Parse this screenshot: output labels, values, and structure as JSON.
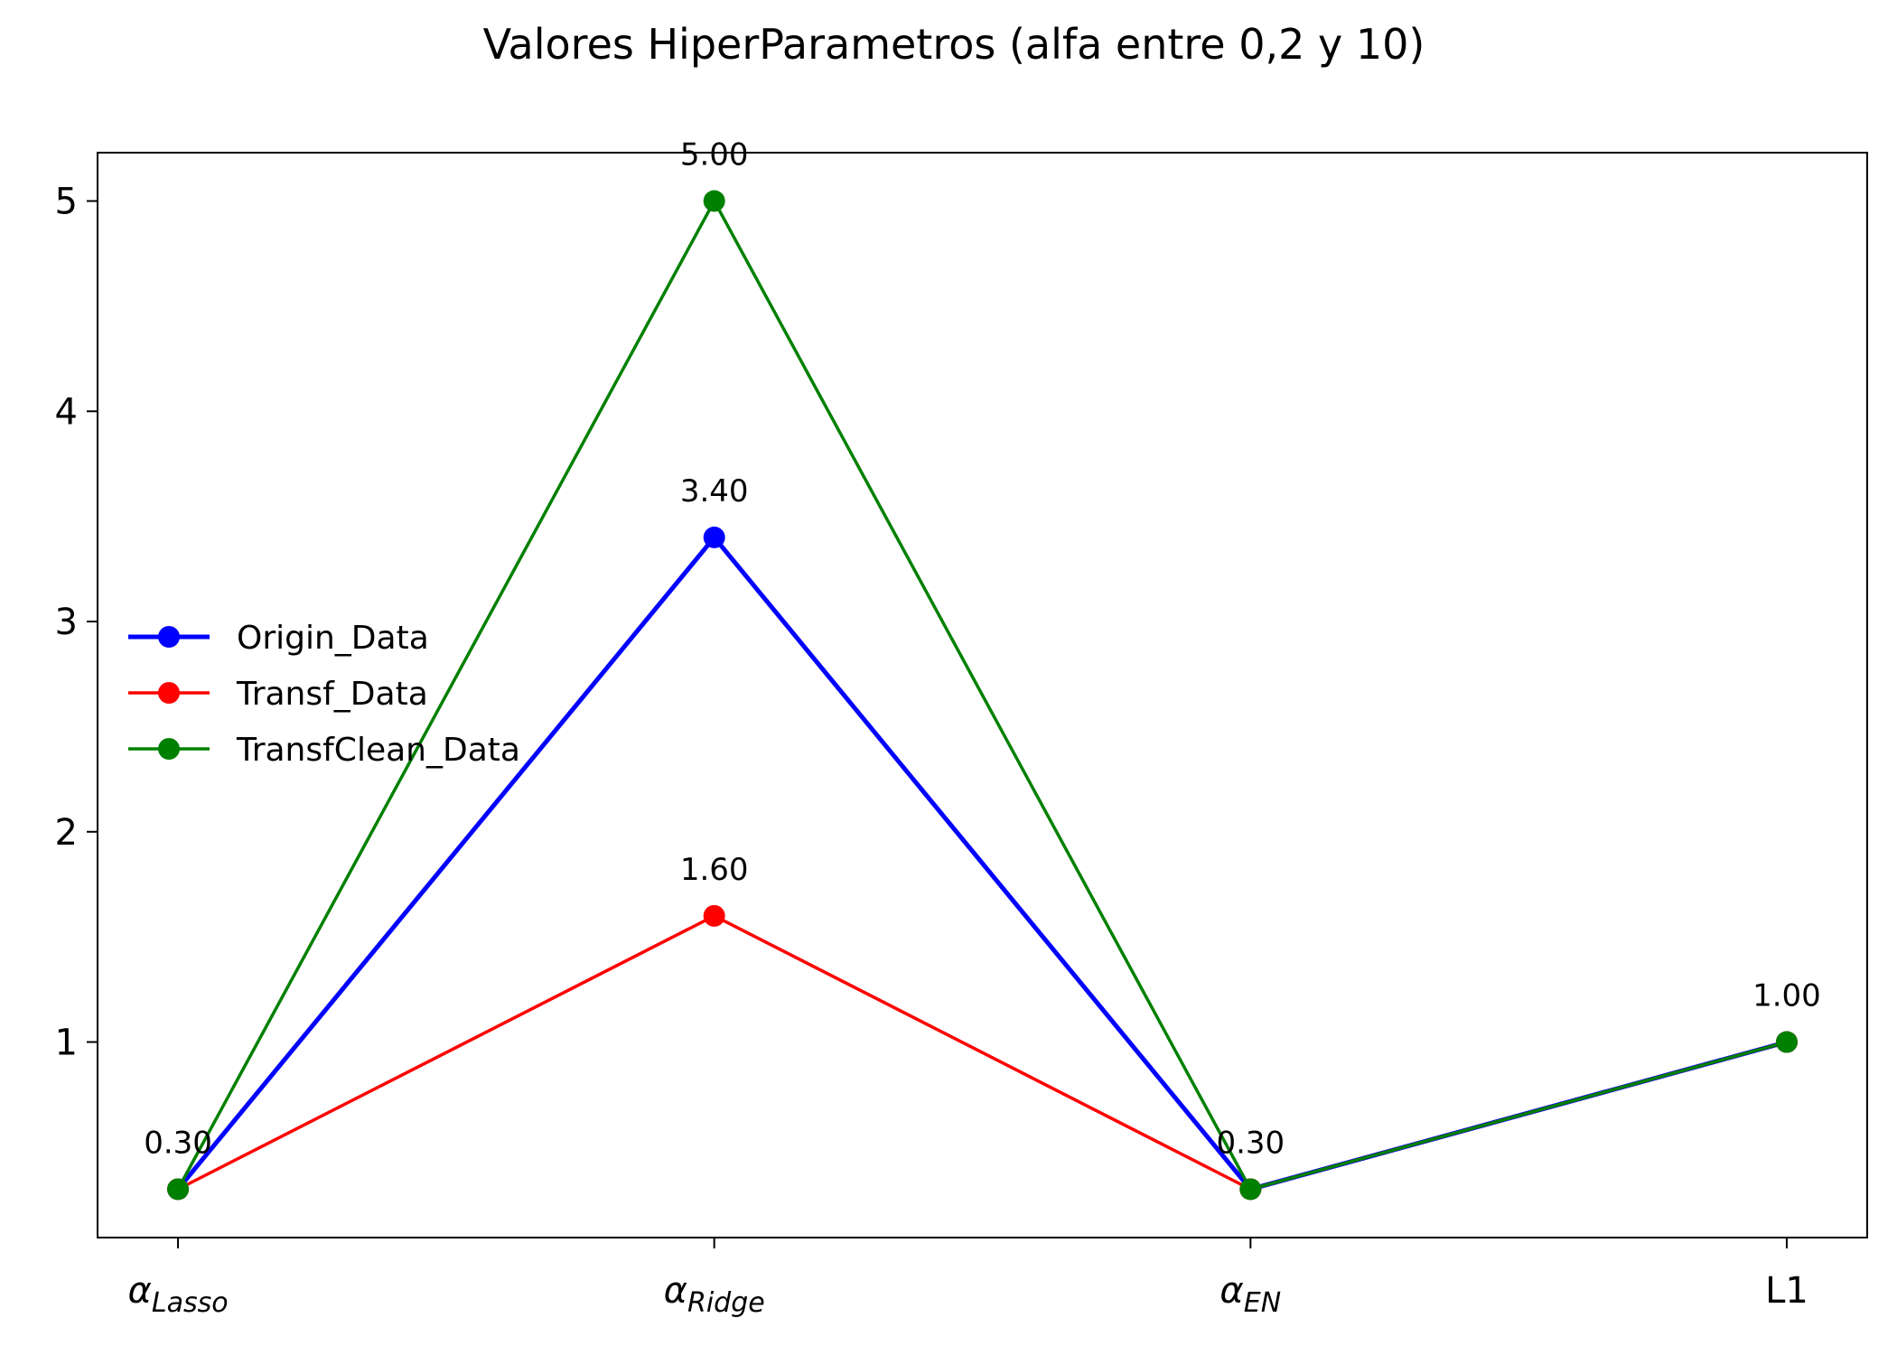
{
  "chart_data": {
    "type": "line",
    "title": "Valores HiperParametros (alfa entre 0,2 y 10)",
    "xlabel": "",
    "ylabel": "",
    "categories": [
      {
        "symbol": "α",
        "sub": "Lasso"
      },
      {
        "symbol": "α",
        "sub": "Ridge"
      },
      {
        "symbol": "α",
        "sub": "EN"
      },
      {
        "symbol": "L1",
        "sub": ""
      }
    ],
    "yticks": [
      "1",
      "2",
      "3",
      "4",
      "5"
    ],
    "ylim": [
      0.07,
      5.23
    ],
    "grid": false,
    "legend_position": "center-left",
    "series": [
      {
        "name": "Origin_Data",
        "color": "#0000ff",
        "values": [
          0.3,
          3.4,
          0.3,
          1.0
        ],
        "line_weight": "thick"
      },
      {
        "name": "Transf_Data",
        "color": "#ff0000",
        "values": [
          0.3,
          1.6,
          0.3,
          1.0
        ],
        "line_weight": "normal"
      },
      {
        "name": "TransfClean_Data",
        "color": "#008000",
        "values": [
          0.3,
          5.0,
          0.3,
          1.0
        ],
        "line_weight": "normal"
      }
    ],
    "annotations": [
      {
        "category": 0,
        "value": 0.3,
        "text": "0.30"
      },
      {
        "category": 1,
        "value": 3.4,
        "text": "3.40"
      },
      {
        "category": 1,
        "value": 1.6,
        "text": "1.60"
      },
      {
        "category": 1,
        "value": 5.0,
        "text": "5.00"
      },
      {
        "category": 2,
        "value": 0.3,
        "text": "0.30"
      },
      {
        "category": 3,
        "value": 1.0,
        "text": "1.00"
      }
    ]
  }
}
